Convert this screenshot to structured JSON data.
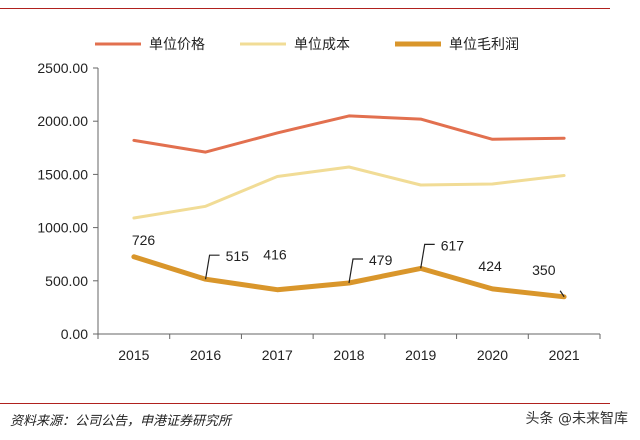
{
  "chart_data": {
    "type": "line",
    "categories": [
      "2015",
      "2016",
      "2017",
      "2018",
      "2019",
      "2020",
      "2021"
    ],
    "yticks": [
      "0.00",
      "500.00",
      "1000.00",
      "1500.00",
      "2000.00",
      "2500.00"
    ],
    "ylim": [
      0,
      2500
    ],
    "legend_position": "top",
    "series": [
      {
        "name": "单位价格",
        "color": "#e2704f",
        "width": 3,
        "values": [
          1820,
          1710,
          1890,
          2050,
          2020,
          1830,
          1840
        ]
      },
      {
        "name": "单位成本",
        "color": "#f1dc96",
        "width": 3,
        "values": [
          1090,
          1200,
          1480,
          1570,
          1400,
          1410,
          1490
        ]
      },
      {
        "name": "单位毛利润",
        "color": "#d9962b",
        "width": 5,
        "values": [
          726,
          515,
          416,
          479,
          617,
          424,
          350
        ]
      }
    ],
    "data_labels": [
      "726",
      "515",
      "416",
      "479",
      "617",
      "424",
      "350"
    ]
  },
  "footer": {
    "source": "资料来源：公司公告，申港证券研究所",
    "watermark": "头条 @未来智库"
  }
}
